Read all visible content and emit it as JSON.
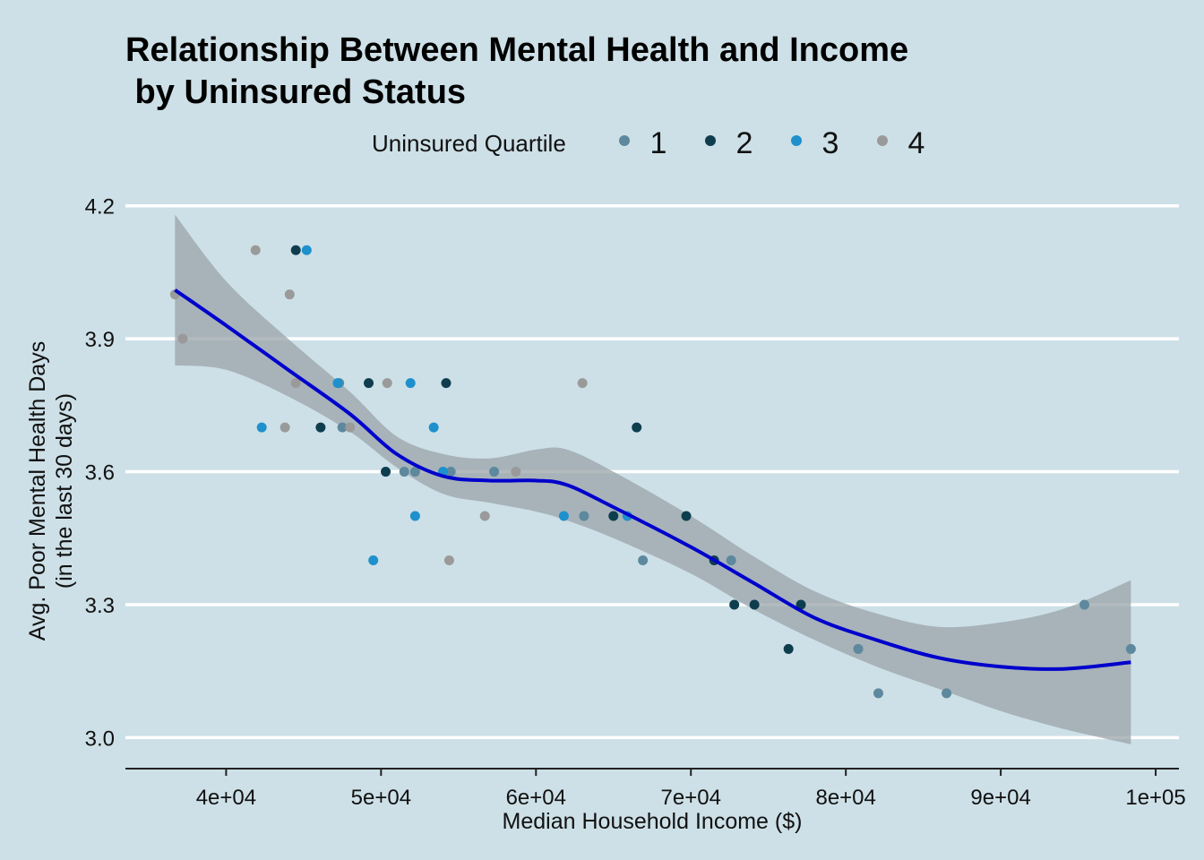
{
  "chart_data": {
    "type": "scatter",
    "title_line1": "Relationship Between Mental Health and Income",
    "title_line2": " by Uninsured Status",
    "xlabel": "Median Household Income ($)",
    "ylabel_line1": "Avg. Poor Mental Health Days",
    "ylabel_line2": "(in the last 30 days)",
    "xlim": [
      33500,
      101500
    ],
    "ylim": [
      2.93,
      4.25
    ],
    "x_ticks": [
      40000,
      50000,
      60000,
      70000,
      80000,
      90000,
      100000
    ],
    "x_tick_labels": [
      "4e+04",
      "5e+04",
      "6e+04",
      "7e+04",
      "8e+04",
      "9e+04",
      "1e+05"
    ],
    "y_ticks": [
      3.0,
      3.3,
      3.6,
      3.9,
      4.2
    ],
    "y_tick_labels": [
      "3.0",
      "3.3",
      "3.6",
      "3.9",
      "4.2"
    ],
    "grid": "horizontal major only",
    "legend": {
      "title": "Uninsured Quartile",
      "position": "top",
      "items": [
        {
          "label": "1",
          "color": "#5d889d"
        },
        {
          "label": "2",
          "color": "#0e3d4e"
        },
        {
          "label": "3",
          "color": "#1e90cc"
        },
        {
          "label": "4",
          "color": "#9a9a9a"
        }
      ]
    },
    "series": [
      {
        "name": "1",
        "color": "#5d889d",
        "points": [
          [
            47500,
            3.7
          ],
          [
            51500,
            3.6
          ],
          [
            52200,
            3.6
          ],
          [
            54500,
            3.6
          ],
          [
            57300,
            3.6
          ],
          [
            63100,
            3.5
          ],
          [
            66900,
            3.4
          ],
          [
            72600,
            3.4
          ],
          [
            80800,
            3.2
          ],
          [
            82100,
            3.1
          ],
          [
            86500,
            3.1
          ],
          [
            95400,
            3.3
          ],
          [
            98400,
            3.2
          ],
          [
            47300,
            3.8
          ]
        ]
      },
      {
        "name": "2",
        "color": "#0e3d4e",
        "points": [
          [
            44500,
            4.1
          ],
          [
            46100,
            3.7
          ],
          [
            49200,
            3.8
          ],
          [
            50300,
            3.6
          ],
          [
            54200,
            3.8
          ],
          [
            65000,
            3.5
          ],
          [
            66500,
            3.7
          ],
          [
            69700,
            3.5
          ],
          [
            71500,
            3.4
          ],
          [
            72800,
            3.3
          ],
          [
            74100,
            3.3
          ],
          [
            76300,
            3.2
          ],
          [
            77100,
            3.3
          ]
        ]
      },
      {
        "name": "3",
        "color": "#1e90cc",
        "points": [
          [
            42300,
            3.7
          ],
          [
            45200,
            4.1
          ],
          [
            47200,
            3.8
          ],
          [
            49500,
            3.4
          ],
          [
            51900,
            3.8
          ],
          [
            52200,
            3.5
          ],
          [
            53400,
            3.7
          ],
          [
            54000,
            3.6
          ],
          [
            61800,
            3.5
          ],
          [
            65900,
            3.5
          ]
        ]
      },
      {
        "name": "4",
        "color": "#9a9a9a",
        "points": [
          [
            36700,
            4.0
          ],
          [
            37200,
            3.9
          ],
          [
            41900,
            4.1
          ],
          [
            43800,
            3.7
          ],
          [
            44100,
            4.0
          ],
          [
            44500,
            3.8
          ],
          [
            48000,
            3.7
          ],
          [
            50400,
            3.8
          ],
          [
            54400,
            3.4
          ],
          [
            56700,
            3.5
          ],
          [
            58700,
            3.6
          ],
          [
            63000,
            3.8
          ]
        ]
      }
    ],
    "smooth": {
      "color": "#0000cc",
      "band_color": "#9aa4aa",
      "x": [
        36700,
        40000,
        44000,
        48000,
        51000,
        54000,
        57000,
        60000,
        62000,
        65000,
        70000,
        74000,
        78000,
        82000,
        86000,
        90000,
        94000,
        98400
      ],
      "y": [
        4.01,
        3.93,
        3.83,
        3.73,
        3.64,
        3.59,
        3.58,
        3.58,
        3.57,
        3.52,
        3.43,
        3.35,
        3.27,
        3.22,
        3.18,
        3.16,
        3.155,
        3.17
      ],
      "lower": [
        3.84,
        3.83,
        3.77,
        3.69,
        3.61,
        3.55,
        3.53,
        3.51,
        3.49,
        3.45,
        3.37,
        3.29,
        3.22,
        3.16,
        3.11,
        3.06,
        3.02,
        2.985
      ],
      "upper": [
        4.18,
        4.03,
        3.9,
        3.78,
        3.68,
        3.64,
        3.63,
        3.65,
        3.65,
        3.6,
        3.5,
        3.41,
        3.33,
        3.28,
        3.25,
        3.26,
        3.29,
        3.355
      ]
    }
  }
}
